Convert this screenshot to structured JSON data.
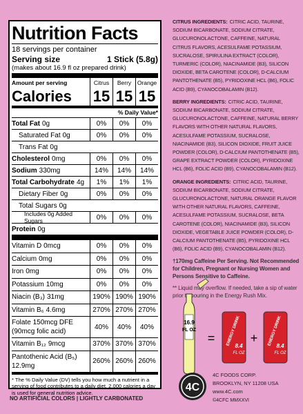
{
  "nutrition": {
    "title": "Nutrition Facts",
    "servings": "18 servings per container",
    "serving_size_label": "Serving size",
    "serving_size": "1 Stick (5.8g)",
    "serving_note": "(makes about 16.9 fl oz prepared drink)",
    "amount_per_serving": "Amount per serving",
    "flavors": [
      "Citrus",
      "Berry",
      "Orange"
    ],
    "calories_label": "Calories",
    "calories": [
      15,
      15,
      15
    ],
    "daily_value_header": "% Daily Value*",
    "nutrients": [
      {
        "name": "Total Fat",
        "amount": "0g",
        "values": [
          "0%",
          "0%",
          "0%"
        ],
        "style": "bold"
      },
      {
        "name": "Saturated Fat",
        "amount": "0g",
        "values": [
          "0%",
          "0%",
          "0%"
        ],
        "style": "indent"
      },
      {
        "name": "Trans Fat",
        "amount": "0g",
        "values": [],
        "style": "indent"
      },
      {
        "name": "Cholesterol",
        "amount": "0mg",
        "values": [
          "0%",
          "0%",
          "0%"
        ],
        "style": "bold"
      },
      {
        "name": "Sodium",
        "amount": "330mg",
        "values": [
          "14%",
          "14%",
          "14%"
        ],
        "style": "bold"
      },
      {
        "name": "Total Carbohydrate",
        "amount": "4g",
        "values": [
          "1%",
          "1%",
          "1%"
        ],
        "style": "bold"
      },
      {
        "name": "Dietary Fiber",
        "amount": "0g",
        "values": [
          "0%",
          "0%",
          "0%"
        ],
        "style": "indent"
      },
      {
        "name": "Total Sugars",
        "amount": "0g",
        "values": [],
        "style": "indent"
      },
      {
        "name": "Includes 0g Added Sugars",
        "values": [
          "0%",
          "0%",
          "0%"
        ],
        "style": "indent2"
      },
      {
        "name": "Protein",
        "amount": "0g",
        "values": [],
        "style": "bold"
      }
    ],
    "vitamins": [
      {
        "name": "Vitamin D",
        "amount": "0mcg",
        "values": [
          "0%",
          "0%",
          "0%"
        ]
      },
      {
        "name": "Calcium",
        "amount": "0mg",
        "values": [
          "0%",
          "0%",
          "0%"
        ]
      },
      {
        "name": "Iron",
        "amount": "0mg",
        "values": [
          "0%",
          "0%",
          "0%"
        ]
      },
      {
        "name": "Potassium",
        "amount": "10mg",
        "values": [
          "0%",
          "0%",
          "0%"
        ]
      },
      {
        "name": "Niacin (B₃)",
        "amount": "31mg",
        "values": [
          "190%",
          "190%",
          "190%"
        ]
      },
      {
        "name": "Vitamin B₆",
        "amount": "4.6mg",
        "values": [
          "270%",
          "270%",
          "270%"
        ]
      },
      {
        "name": "Folate 150mcg DFE",
        "amount": "(90mcg folic acid)",
        "values": [
          "40%",
          "40%",
          "40%"
        ],
        "style": "tall"
      },
      {
        "name": "Vitamin B₁₂",
        "amount": "9mcg",
        "values": [
          "370%",
          "370%",
          "370%"
        ]
      },
      {
        "name": "Pantothenic Acid (B₅)",
        "amount": "12.9mg",
        "values": [
          "260%",
          "260%",
          "260%"
        ],
        "style": "tall"
      }
    ],
    "footnote": "* The % Daily Value (DV) tells you how much a nutrient in a serving of food contributes to a daily diet. 2,000 calories a day is used for general nutrition advice."
  },
  "claims": "NO ARTIFICIAL COLORS | LIGHTLY CARBONATED",
  "ingredients": [
    {
      "heading": "CITRUS INGREDIENTS:",
      "text": "CITRIC ACID, TAURINE, SODIUM BICARBONATE, SODIUM CITRATE, GLUCURONOLACTONE, CAFFEINE, NATURAL CITRUS FLAVORS, ACESULFAME POTASSIUM, SUCRALOSE, SPIRULINA EXTRACT (COLOR), TURMERIC (COLOR), NIACINAMIDE (B3), SILICON DIOXIDE, BETA CAROTENE (COLOR), D-CALCIUM PANTOTHENATE (B5), PYRIDOXINE HCL (B6), FOLIC ACID (B9), CYANOCOBALAMIN (B12)."
    },
    {
      "heading": "BERRY INGREDIENTS:",
      "text": "CITRIC ACID, TAURINE, SODIUM BICARBONATE, SODIUM CITRATE, GLUCURONOLACTONE, CAFFEINE, NATURAL BERRY FLAVORS WITH OTHER NATURAL FLAVORS, ACESULFAME POTASSIUM, SUCRALOSE, NIACINAMIDE (B3), SILICON DIOXIDE, FRUIT JUICE POWDER (COLOR), D-CALCIUM PANTOTHENATE (B5), GRAPE EXTRACT POWDER (COLOR), PYRIDOXINE HCL (B6), FOLIC ACID (B9), CYANOCOBALAMIN (B12)."
    },
    {
      "heading": "ORANGE INGREDIENTS:",
      "text": "CITRIC ACID, TAURINE, SODIUM BICARBONATE, SODIUM CITRATE, GLUCURONOLACTONE, NATURAL ORANGE FLAVOR WITH OTHER NATURAL FLAVORS, CAFFEINE, ACESULFAME POTASSIUM, SUCRALOSE, BETA CAROTENE (COLOR), NIACINAMIDE (B3), SILICON DIOXIDE, VEGETABLE JUICE POWDER (COLOR), D-CALCIUM PANTOTHENATE (B5), PYRIDOXINE HCL (B6), FOLIC ACID (B9), CYANOCOBALAMIN (B12)."
    }
  ],
  "caffeine_note": "†170mg Caffeine Per Serving. Not Recommended for Children, Pregnant or Nursing Women and Persons Sensitive to Caffeine.",
  "pour_note": "** Liquid may overflow. If needed, take a sip of water prior to pouring in the Energy Rush Mix.",
  "illustration": {
    "bottle_size": "16.9",
    "bottle_unit": "FL OZ",
    "equals": "=",
    "plus": "+",
    "cans": [
      {
        "label": "ENERGY DRINK",
        "size": "8.4",
        "unit": "FL OZ"
      },
      {
        "label": "ENERGY DRINK",
        "size": "8.4",
        "unit": "FL OZ"
      }
    ]
  },
  "company": {
    "logo": "4C",
    "name": "4C FOODS CORP.",
    "address": "BROOKLYN, NY 11208 USA",
    "website": "www.4C.com",
    "copyright": "©4CFC MMXXVI"
  }
}
